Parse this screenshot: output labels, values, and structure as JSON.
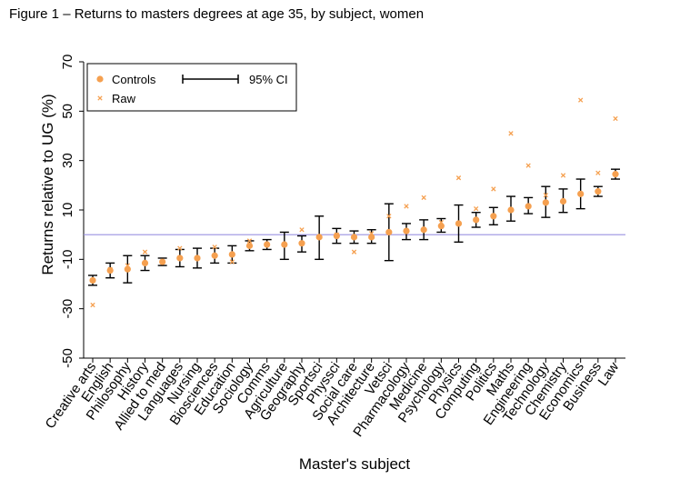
{
  "figure_title": "Figure 1 – Returns to masters degrees at age 35, by subject, women",
  "colors": {
    "marker": "#f5a050",
    "ci": "#000000",
    "reference": "#9a90e0",
    "axis": "#000000"
  },
  "chart_data": {
    "type": "scatter",
    "title": "",
    "xlabel": "Master's subject",
    "ylabel": "Returns relative to UG (%)",
    "ylim": [
      -50,
      70
    ],
    "yticks": [
      -50,
      -30,
      -10,
      10,
      30,
      50,
      70
    ],
    "reference_line": 0,
    "grid": false,
    "legend_position": "top-left",
    "legend": [
      {
        "label": "Controls",
        "marker": "circle"
      },
      {
        "label": "Raw",
        "marker": "x"
      },
      {
        "label": "95% CI",
        "marker": "errorbar"
      }
    ],
    "categories": [
      "Creative arts",
      "English",
      "Philosophy",
      "History",
      "Allied to med",
      "Languages",
      "Nursing",
      "Biosciences",
      "Education",
      "Sociology",
      "Comms",
      "Agriculture",
      "Geography",
      "Sportsci",
      "Physsci",
      "Social care",
      "Architecture",
      "Vetsci",
      "Pharmacology",
      "Medicine",
      "Psychology",
      "Physics",
      "Computing",
      "Politics",
      "Maths",
      "Engineering",
      "Technology",
      "Chemistry",
      "Economics",
      "Business",
      "Law"
    ],
    "series": [
      {
        "name": "Controls",
        "values": [
          -18.5,
          -14.5,
          -14.0,
          -11.5,
          -11.0,
          -9.5,
          -9.5,
          -8.5,
          -8.0,
          -4.5,
          -4.0,
          -4.0,
          -3.5,
          -1.0,
          -0.5,
          -1.0,
          -1.0,
          1.0,
          1.5,
          2.0,
          3.5,
          4.5,
          6.0,
          7.5,
          10.0,
          11.5,
          13.0,
          13.5,
          16.5,
          17.5,
          24.5
        ]
      },
      {
        "name": "Raw",
        "values": [
          -28.5,
          -14.0,
          -12.5,
          -7.0,
          -11.0,
          -5.5,
          -9.5,
          -5.0,
          -11.0,
          -2.5,
          -4.0,
          -4.0,
          2.0,
          -1.0,
          0.0,
          -7.0,
          0.5,
          7.5,
          11.5,
          15.0,
          5.0,
          23.0,
          10.5,
          18.5,
          41.0,
          28.0,
          16.0,
          24.0,
          54.5,
          25.0,
          47.0
        ]
      },
      {
        "name": "95% CI",
        "lower": [
          -20.5,
          -17.5,
          -19.5,
          -14.5,
          -12.5,
          -13.0,
          -13.5,
          -11.5,
          -11.5,
          -6.5,
          -6.0,
          -10.0,
          -7.0,
          -10.0,
          -3.5,
          -3.5,
          -3.5,
          -10.5,
          -2.0,
          -2.0,
          1.0,
          -3.0,
          3.0,
          4.0,
          5.5,
          8.5,
          7.0,
          9.0,
          10.5,
          15.5,
          22.5
        ],
        "upper": [
          -16.5,
          -11.5,
          -8.5,
          -8.5,
          -9.5,
          -6.0,
          -5.5,
          -5.5,
          -4.5,
          -2.5,
          -2.0,
          1.0,
          -0.5,
          7.5,
          2.5,
          1.5,
          2.0,
          12.5,
          4.5,
          6.0,
          6.5,
          12.0,
          9.0,
          11.0,
          15.5,
          15.0,
          19.5,
          18.5,
          22.5,
          19.5,
          26.5
        ]
      }
    ]
  }
}
